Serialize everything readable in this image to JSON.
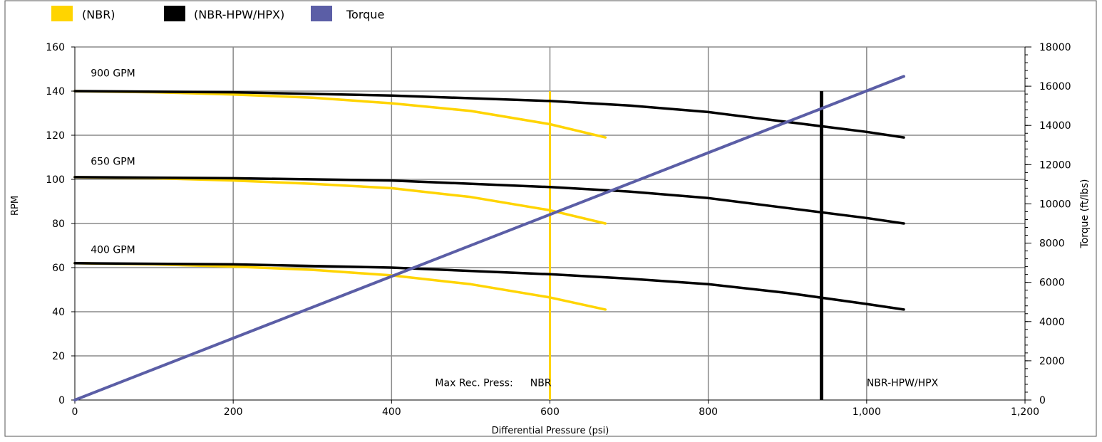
{
  "legend": [
    {
      "label": "(NBR)",
      "color": "#FFD400"
    },
    {
      "label": "(NBR-HPW/HPX)",
      "color": "#000000"
    },
    {
      "label": "Torque",
      "color": "#5B5EA6"
    }
  ],
  "chart_data": {
    "type": "line",
    "title": "",
    "xlabel": "Differential Pressure (psi)",
    "ylabel": "RPM",
    "y2label": "Torque (ft/lbs)",
    "xlim": [
      0,
      1200
    ],
    "ylim": [
      0,
      160
    ],
    "y2lim": [
      0,
      18000
    ],
    "x_ticks": [
      "0",
      "200",
      "400",
      "600",
      "800",
      "1,000",
      "1,200"
    ],
    "x_tick_values": [
      0,
      200,
      400,
      600,
      800,
      1000,
      1200
    ],
    "y_ticks": [
      "0",
      "20",
      "40",
      "60",
      "80",
      "100",
      "120",
      "140",
      "160"
    ],
    "y_tick_values": [
      0,
      20,
      40,
      60,
      80,
      100,
      120,
      140,
      160
    ],
    "y2_ticks": [
      "0",
      "2000",
      "4000",
      "6000",
      "8000",
      "10000",
      "12000",
      "14000",
      "16000",
      "18000"
    ],
    "y2_tick_values": [
      0,
      2000,
      4000,
      6000,
      8000,
      10000,
      12000,
      14000,
      16000,
      18000
    ],
    "grid": true,
    "legend_position": "top-left",
    "flow_labels": [
      {
        "text": "900 GPM",
        "x": 20,
        "y": 144
      },
      {
        "text": "650 GPM",
        "x": 20,
        "y": 104
      },
      {
        "text": "400 GPM",
        "x": 20,
        "y": 64
      }
    ],
    "series": [
      {
        "group": "(NBR)",
        "flow": "900 GPM",
        "color": "#FFD400",
        "x": [
          0,
          100,
          200,
          300,
          400,
          500,
          600,
          670
        ],
        "y": [
          140,
          139.5,
          138.5,
          137,
          134.5,
          131,
          125,
          119
        ]
      },
      {
        "group": "(NBR)",
        "flow": "650 GPM",
        "color": "#FFD400",
        "x": [
          0,
          100,
          200,
          300,
          400,
          500,
          600,
          670
        ],
        "y": [
          101,
          100.5,
          99.5,
          98,
          96,
          92,
          86,
          80
        ]
      },
      {
        "group": "(NBR)",
        "flow": "400 GPM",
        "color": "#FFD400",
        "x": [
          0,
          100,
          200,
          300,
          400,
          500,
          600,
          670
        ],
        "y": [
          62,
          61.5,
          60.5,
          59,
          56.5,
          52.5,
          46.5,
          41
        ]
      },
      {
        "group": "(NBR-HPW/HPX)",
        "flow": "900 GPM",
        "color": "#000000",
        "x": [
          0,
          200,
          400,
          600,
          700,
          800,
          900,
          1000,
          1047
        ],
        "y": [
          140,
          139.5,
          138,
          135.5,
          133.5,
          130.5,
          126,
          121.5,
          119
        ]
      },
      {
        "group": "(NBR-HPW/HPX)",
        "flow": "650 GPM",
        "color": "#000000",
        "x": [
          0,
          200,
          400,
          600,
          700,
          800,
          900,
          1000,
          1047
        ],
        "y": [
          101,
          100.5,
          99.5,
          96.5,
          94.5,
          91.5,
          87,
          82.5,
          80
        ]
      },
      {
        "group": "(NBR-HPW/HPX)",
        "flow": "400 GPM",
        "color": "#000000",
        "x": [
          0,
          200,
          400,
          600,
          700,
          800,
          900,
          1000,
          1047
        ],
        "y": [
          62,
          61.5,
          60,
          57,
          55,
          52.5,
          48.5,
          43.5,
          41
        ]
      },
      {
        "group": "Torque",
        "name": "Torque",
        "color": "#5B5EA6",
        "axis": "y2",
        "x": [
          0,
          1047
        ],
        "y": [
          0,
          16500
        ]
      }
    ],
    "reference_lines": [
      {
        "name": "NBR",
        "x": 600,
        "ymax": 140,
        "color": "#FFD400"
      },
      {
        "name": "NBR-HPW/HPX",
        "x": 943,
        "ymax": 140,
        "color": "#000000"
      }
    ],
    "annotations": [
      {
        "text": "Max Rec. Press:",
        "x": 455,
        "y": 6
      },
      {
        "text": "NBR",
        "x": 575,
        "y": 6
      },
      {
        "text": "NBR-HPW/HPX",
        "x": 1000,
        "y": 6
      }
    ]
  }
}
